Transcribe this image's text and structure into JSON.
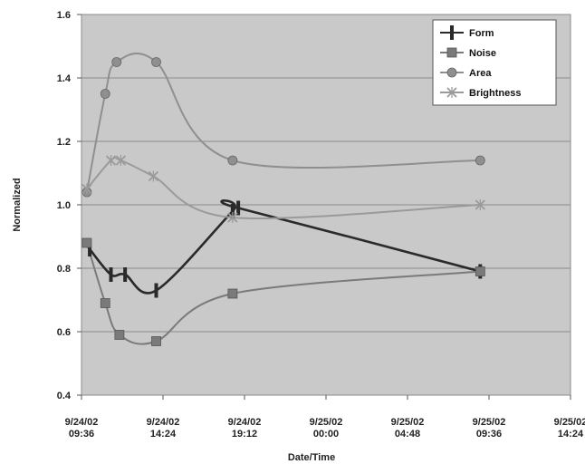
{
  "chart_data": {
    "type": "line",
    "title": "",
    "xlabel": "Date/Time",
    "ylabel": "Normalized",
    "ylim": [
      0.4,
      1.6
    ],
    "yticks": [
      "0.4",
      "0.6",
      "0.8",
      "1.0",
      "1.2",
      "1.4",
      "1.6"
    ],
    "xlim": [
      "2002-09-24 09:36",
      "2002-09-25 14:24"
    ],
    "xticks": [
      {
        "line1": "9/24/02",
        "line2": "09:36"
      },
      {
        "line1": "9/24/02",
        "line2": "14:24"
      },
      {
        "line1": "9/24/02",
        "line2": "19:12"
      },
      {
        "line1": "9/25/02",
        "line2": "00:00"
      },
      {
        "line1": "9/25/02",
        "line2": "04:48"
      },
      {
        "line1": "9/25/02",
        "line2": "09:36"
      },
      {
        "line1": "9/25/02",
        "line2": "14:24"
      }
    ],
    "grid": true,
    "legend_position": "top-right",
    "background_color": "#c9c9c9",
    "series": [
      {
        "name": "Form",
        "color": "#2a2a2a",
        "marker": "bar",
        "points": [
          {
            "x": "2002-09-24 10:05",
            "y": 0.86
          },
          {
            "x": "2002-09-24 11:20",
            "y": 0.78
          },
          {
            "x": "2002-09-24 12:10",
            "y": 0.78
          },
          {
            "x": "2002-09-24 14:00",
            "y": 0.73
          },
          {
            "x": "2002-09-24 18:30",
            "y": 0.98
          },
          {
            "x": "2002-09-24 18:50",
            "y": 0.99
          },
          {
            "x": "2002-09-25 09:05",
            "y": 0.79
          }
        ]
      },
      {
        "name": "Noise",
        "color": "#7a7a7a",
        "marker": "square",
        "points": [
          {
            "x": "2002-09-24 09:55",
            "y": 0.88
          },
          {
            "x": "2002-09-24 11:00",
            "y": 0.69
          },
          {
            "x": "2002-09-24 11:50",
            "y": 0.59
          },
          {
            "x": "2002-09-24 14:00",
            "y": 0.57
          },
          {
            "x": "2002-09-24 18:30",
            "y": 0.72
          },
          {
            "x": "2002-09-25 09:05",
            "y": 0.79
          }
        ]
      },
      {
        "name": "Area",
        "color": "#8f8f8f",
        "marker": "circle",
        "points": [
          {
            "x": "2002-09-24 09:55",
            "y": 1.04
          },
          {
            "x": "2002-09-24 11:00",
            "y": 1.35
          },
          {
            "x": "2002-09-24 11:40",
            "y": 1.45
          },
          {
            "x": "2002-09-24 14:00",
            "y": 1.45
          },
          {
            "x": "2002-09-24 18:30",
            "y": 1.14
          },
          {
            "x": "2002-09-25 09:05",
            "y": 1.14
          }
        ]
      },
      {
        "name": "Brightness",
        "color": "#9a9a9a",
        "marker": "star",
        "points": [
          {
            "x": "2002-09-24 09:55",
            "y": 1.05
          },
          {
            "x": "2002-09-24 11:20",
            "y": 1.14
          },
          {
            "x": "2002-09-24 11:55",
            "y": 1.14
          },
          {
            "x": "2002-09-24 13:50",
            "y": 1.09
          },
          {
            "x": "2002-09-24 18:30",
            "y": 0.96
          },
          {
            "x": "2002-09-25 09:05",
            "y": 1.0
          }
        ]
      }
    ]
  }
}
